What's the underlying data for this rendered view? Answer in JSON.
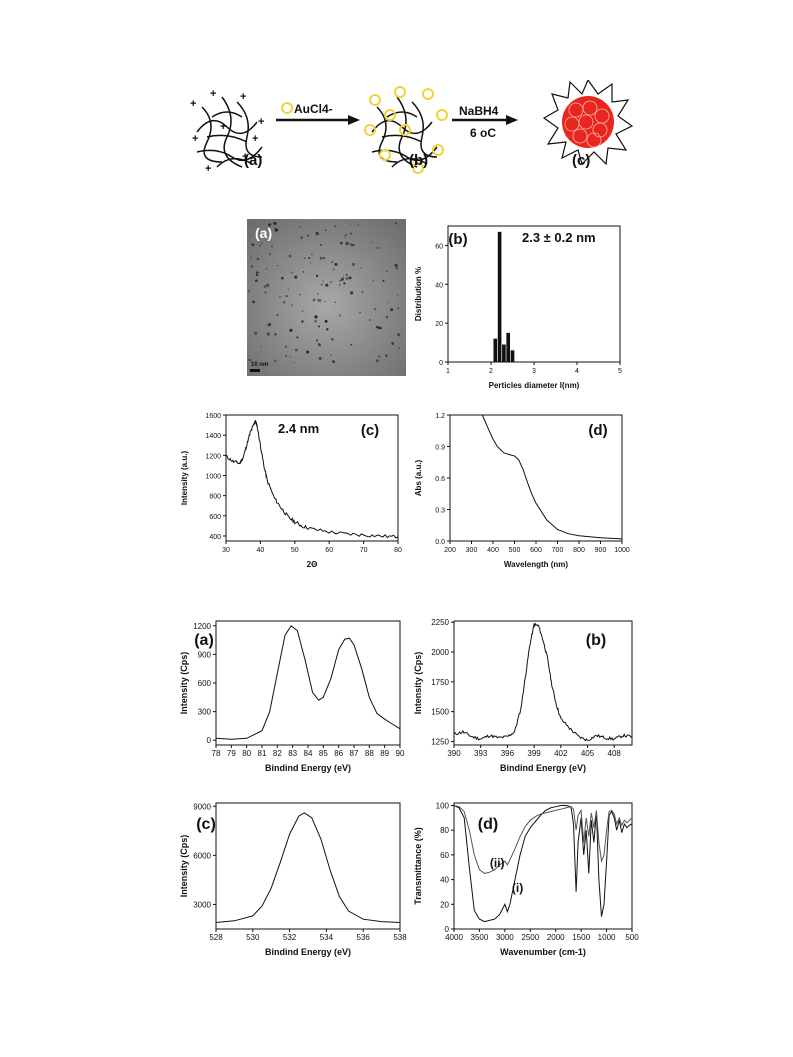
{
  "scheme": {
    "labels": [
      "(a)",
      "(b)",
      "(c)"
    ],
    "reagent1": "AuCl4-",
    "reagent2_top": "NaBH4",
    "reagent2_bottom": "6 oC"
  },
  "tem": {
    "panel_label": "(a)",
    "scale_bar": "10 nm"
  },
  "colors": {
    "gold": "#f1d23b",
    "gold_core": "#e8261d",
    "ink": "#111111"
  },
  "chart_data": [
    {
      "id": "particle-size-histogram",
      "type": "bar",
      "panel_label": "(b)",
      "annotation": "2.3 ± 0.2 nm",
      "xlabel": "Perticles diameter l(nm)",
      "ylabel": "Distribution %",
      "xlim": [
        1,
        5
      ],
      "ylim": [
        0,
        70
      ],
      "xticks": [
        1,
        2,
        3,
        4,
        5
      ],
      "yticks": [
        0,
        20,
        40,
        60
      ],
      "x": [
        2.1,
        2.2,
        2.3,
        2.4,
        2.5
      ],
      "values": [
        12,
        67,
        9,
        15,
        6
      ]
    },
    {
      "id": "xrd-pattern",
      "type": "line",
      "panel_label": "(c)",
      "annotation": "2.4 nm",
      "xlabel": "2Θ",
      "ylabel": "Intensity (a.u.)",
      "xlim": [
        30,
        80
      ],
      "ylim": [
        350,
        1600
      ],
      "xticks": [
        30,
        40,
        50,
        60,
        70,
        80
      ],
      "yticks": [
        400,
        600,
        800,
        1000,
        1200,
        1400,
        1600
      ],
      "x": [
        30,
        32,
        34,
        35,
        36,
        37,
        38,
        38.5,
        39,
        40,
        41,
        42,
        44,
        46,
        48,
        50,
        52,
        55,
        60,
        65,
        70,
        75,
        80
      ],
      "y": [
        1190,
        1140,
        1120,
        1180,
        1300,
        1420,
        1500,
        1540,
        1500,
        1300,
        1100,
        950,
        780,
        680,
        590,
        540,
        500,
        470,
        440,
        420,
        410,
        400,
        390
      ]
    },
    {
      "id": "uv-vis-spectrum",
      "type": "line",
      "panel_label": "(d)",
      "xlabel": "Wavelength (nm)",
      "ylabel": "Abs (a.u.)",
      "xlim": [
        200,
        1000
      ],
      "ylim": [
        0,
        1.2
      ],
      "xticks": [
        200,
        300,
        400,
        500,
        600,
        700,
        800,
        900,
        1000
      ],
      "yticks": [
        0.0,
        0.3,
        0.6,
        0.9,
        1.2
      ],
      "x": [
        350,
        380,
        400,
        420,
        450,
        480,
        500,
        520,
        540,
        560,
        580,
        600,
        650,
        700,
        750,
        800,
        900,
        1000
      ],
      "y": [
        1.2,
        1.06,
        0.97,
        0.9,
        0.84,
        0.82,
        0.81,
        0.77,
        0.68,
        0.56,
        0.45,
        0.36,
        0.2,
        0.11,
        0.07,
        0.05,
        0.03,
        0.02
      ]
    },
    {
      "id": "xps-au4f",
      "type": "line",
      "panel_label": "(a)",
      "xlabel": "Bindind Energy (eV)",
      "ylabel": "Intensity (Cps)",
      "xlim": [
        78,
        90
      ],
      "ylim": [
        -50,
        1250
      ],
      "xticks": [
        78,
        79,
        80,
        81,
        82,
        83,
        84,
        85,
        86,
        87,
        88,
        89,
        90
      ],
      "yticks": [
        0,
        300,
        600,
        900,
        1200
      ],
      "x": [
        78,
        79,
        80,
        81,
        81.5,
        82,
        82.5,
        82.9,
        83.3,
        83.8,
        84.3,
        84.7,
        85,
        85.5,
        86,
        86.4,
        86.7,
        87,
        87.5,
        88,
        88.5,
        89,
        89.5,
        90
      ],
      "y": [
        20,
        10,
        20,
        100,
        300,
        700,
        1100,
        1200,
        1150,
        850,
        500,
        420,
        450,
        650,
        950,
        1060,
        1070,
        1000,
        750,
        450,
        280,
        220,
        170,
        120
      ]
    },
    {
      "id": "xps-n1s",
      "type": "line",
      "panel_label": "(b)",
      "xlabel": "Bindind Energy (eV)",
      "ylabel": "Intensity (Cps)",
      "xlim": [
        390,
        410
      ],
      "ylim": [
        1220,
        2260
      ],
      "xticks": [
        390,
        393,
        396,
        399,
        402,
        405,
        408
      ],
      "yticks": [
        1250,
        1500,
        1750,
        2000,
        2250
      ],
      "x": [
        390,
        391,
        392,
        393,
        394,
        395,
        396,
        396.8,
        397.5,
        398,
        398.5,
        399,
        399.5,
        400,
        400.5,
        401,
        401.5,
        402,
        403,
        404,
        405,
        406,
        407,
        408,
        409,
        410
      ],
      "y": [
        1310,
        1330,
        1290,
        1270,
        1300,
        1280,
        1290,
        1330,
        1520,
        1780,
        2050,
        2230,
        2220,
        2100,
        1950,
        1720,
        1560,
        1440,
        1360,
        1290,
        1260,
        1300,
        1280,
        1270,
        1300,
        1290
      ]
    },
    {
      "id": "xps-o1s",
      "type": "line",
      "panel_label": "(c)",
      "xlabel": "Bindind Energy (eV)",
      "ylabel": "Intensity (Cps)",
      "xlim": [
        528,
        538
      ],
      "ylim": [
        1500,
        9200
      ],
      "xticks": [
        528,
        530,
        532,
        534,
        536,
        538
      ],
      "yticks": [
        3000,
        6000,
        9000
      ],
      "x": [
        528,
        529,
        530,
        530.5,
        531,
        531.5,
        532,
        532.5,
        532.8,
        533.2,
        533.7,
        534.2,
        534.7,
        535.2,
        536,
        537,
        538
      ],
      "y": [
        1900,
        2000,
        2300,
        2900,
        4000,
        5600,
        7300,
        8400,
        8600,
        8300,
        7000,
        5100,
        3500,
        2600,
        2100,
        1950,
        1900
      ]
    },
    {
      "id": "ftir",
      "type": "line",
      "panel_label": "(d)",
      "xlabel": "Wavenumber (cm-1)",
      "ylabel": "Transmittance (%)",
      "xlim": [
        4000,
        500
      ],
      "ylim": [
        0,
        102
      ],
      "xticks": [
        4000,
        3500,
        3000,
        2500,
        2000,
        1500,
        1000,
        500
      ],
      "yticks": [
        0,
        20,
        40,
        60,
        80,
        100
      ],
      "series": [
        {
          "name": "(i)",
          "x": [
            4000,
            3900,
            3800,
            3700,
            3600,
            3500,
            3400,
            3300,
            3200,
            3100,
            3000,
            2950,
            2900,
            2800,
            2700,
            2600,
            2500,
            2400,
            2300,
            2200,
            2100,
            2000,
            1900,
            1800,
            1700,
            1650,
            1600,
            1560,
            1500,
            1450,
            1400,
            1350,
            1300,
            1250,
            1200,
            1150,
            1100,
            1050,
            1000,
            950,
            900,
            850,
            800,
            750,
            700,
            650,
            600,
            550,
            500
          ],
          "y": [
            100,
            98,
            90,
            50,
            15,
            8,
            6,
            7,
            8,
            12,
            20,
            14,
            20,
            40,
            60,
            75,
            82,
            87,
            92,
            96,
            98,
            99,
            100,
            100,
            99,
            85,
            30,
            70,
            90,
            60,
            80,
            45,
            88,
            70,
            95,
            40,
            10,
            20,
            55,
            92,
            95,
            90,
            80,
            88,
            78,
            85,
            82,
            84,
            85
          ]
        },
        {
          "name": "(ii)",
          "x": [
            4000,
            3900,
            3800,
            3700,
            3600,
            3500,
            3400,
            3300,
            3200,
            3100,
            3000,
            2950,
            2900,
            2800,
            2700,
            2600,
            2500,
            2400,
            2300,
            2200,
            2100,
            2000,
            1900,
            1800,
            1700,
            1650,
            1600,
            1560,
            1500,
            1450,
            1400,
            1350,
            1300,
            1250,
            1200,
            1150,
            1100,
            1050,
            1000,
            950,
            900,
            850,
            800,
            750,
            700,
            650,
            600,
            550,
            500
          ],
          "y": [
            100,
            99,
            95,
            80,
            60,
            48,
            45,
            46,
            48,
            52,
            55,
            52,
            56,
            65,
            75,
            83,
            88,
            91,
            93,
            94,
            95,
            96,
            97,
            98,
            99,
            97,
            80,
            92,
            96,
            70,
            90,
            75,
            94,
            82,
            96,
            70,
            55,
            60,
            80,
            95,
            96,
            93,
            85,
            90,
            84,
            88,
            86,
            88,
            90
          ]
        }
      ]
    }
  ]
}
